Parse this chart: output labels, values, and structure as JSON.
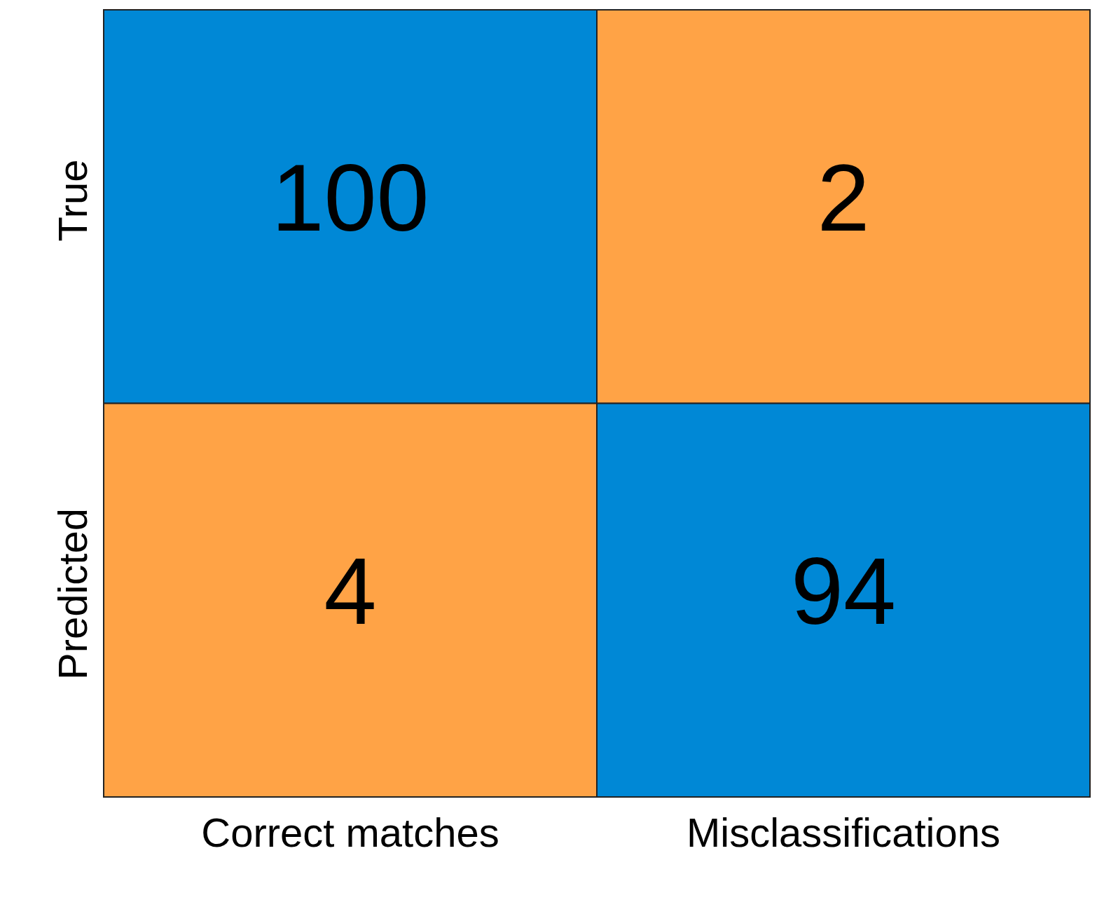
{
  "chart_data": {
    "type": "heatmap",
    "categories": [
      "Correct matches",
      "Misclassifications"
    ],
    "y_categories": [
      "True",
      "Predicted"
    ],
    "cells": [
      [
        100,
        2
      ],
      [
        4,
        94
      ]
    ],
    "colors": [
      "#0088d6",
      "#ffa346",
      "#ffa346",
      "#0088d6"
    ],
    "data_labels": true
  }
}
